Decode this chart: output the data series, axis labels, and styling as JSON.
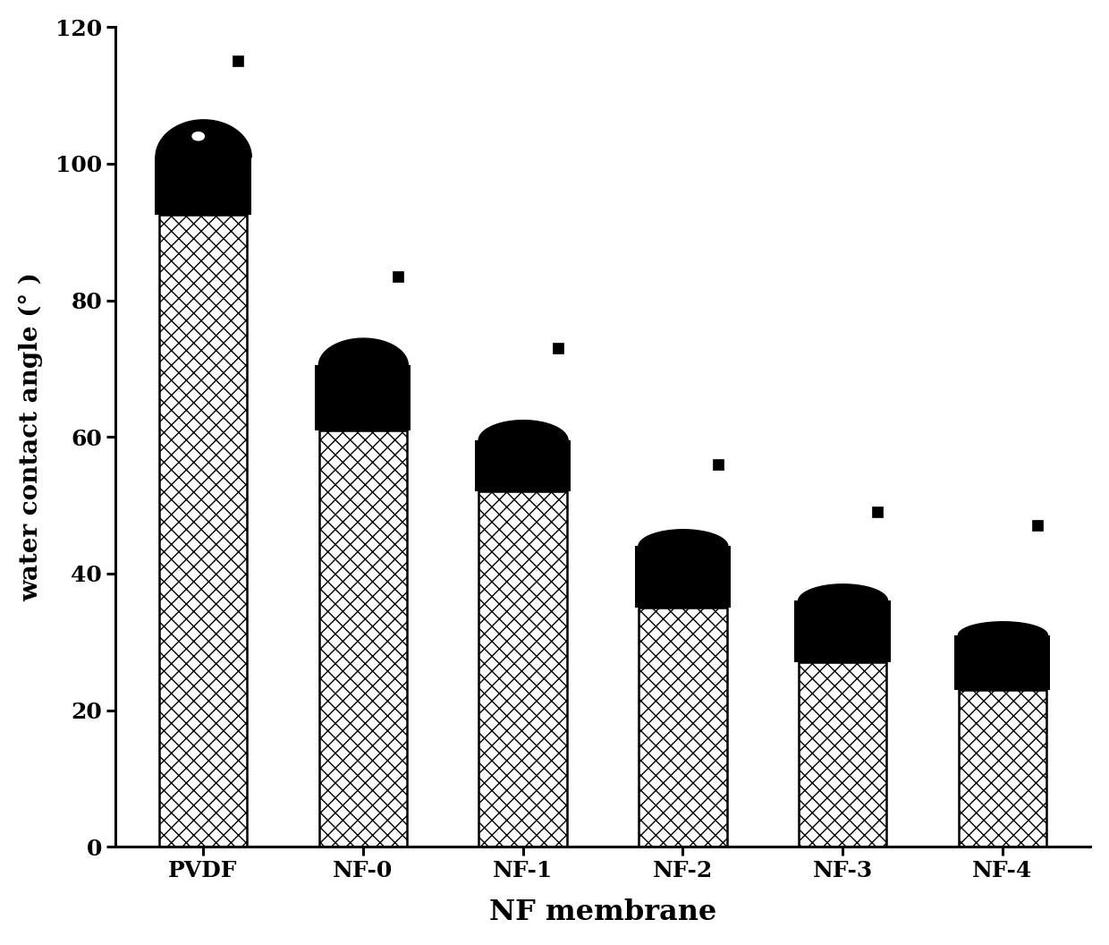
{
  "categories": [
    "PVDF",
    "NF-0",
    "NF-1",
    "NF-2",
    "NF-3",
    "NF-4"
  ],
  "hatched_values": [
    92.5,
    61.0,
    52.0,
    35.0,
    27.0,
    23.0
  ],
  "black_bar_bottom": [
    92.5,
    61.0,
    52.0,
    35.0,
    27.0,
    23.0
  ],
  "black_bar_top": [
    101.0,
    70.5,
    59.5,
    44.0,
    36.0,
    31.0
  ],
  "scatter_points": [
    115.0,
    83.5,
    73.0,
    56.0,
    49.0,
    47.0
  ],
  "dome_heights": [
    5.5,
    4.0,
    3.0,
    2.5,
    2.5,
    2.0
  ],
  "dome_widths": [
    0.3,
    0.28,
    0.28,
    0.28,
    0.28,
    0.28
  ],
  "scatter_offsets": [
    0.22,
    0.22,
    0.22,
    0.22,
    0.22,
    0.22
  ],
  "xlabel": "NF membrane",
  "ylabel": "water contact angle (° )",
  "ylim": [
    0,
    120
  ],
  "yticks": [
    0,
    20,
    40,
    60,
    80,
    100,
    120
  ],
  "bar_width": 0.55,
  "black_bar_width": 0.6,
  "background_color": "#ffffff",
  "axis_fontsize": 20,
  "tick_fontsize": 18,
  "label_fontsize": 23
}
